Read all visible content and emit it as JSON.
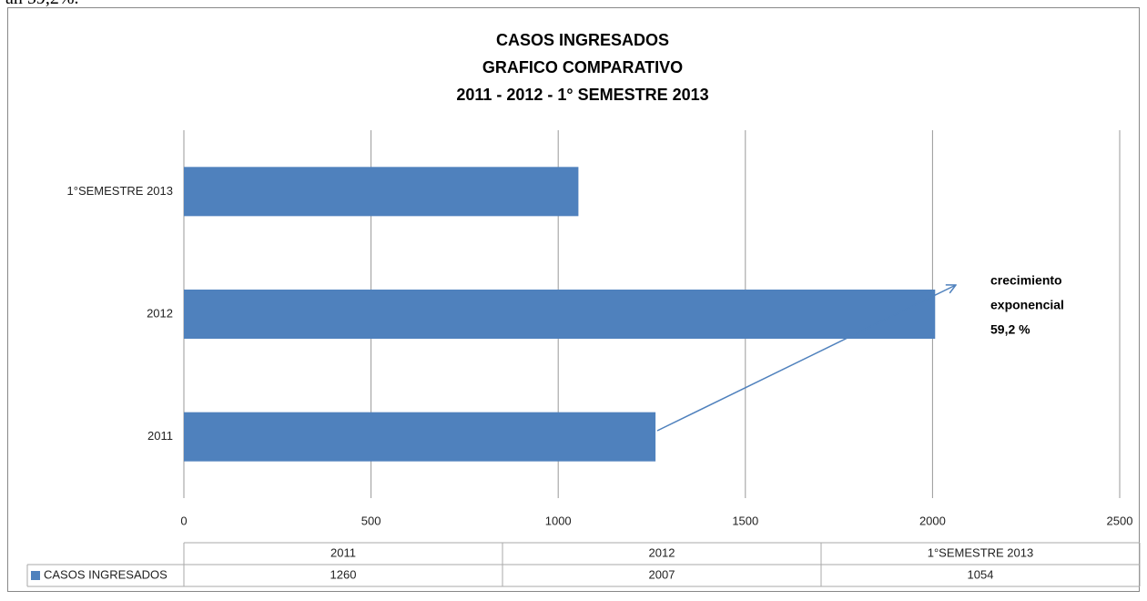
{
  "header_fragment": "an 59,2%.",
  "chart_data": {
    "type": "barh",
    "title": [
      "CASOS INGRESADOS",
      "GRAFICO COMPARATIVO",
      "2011 - 2012 - 1° SEMESTRE 2013"
    ],
    "categories": [
      "2011",
      "2012",
      "1°SEMESTRE 2013"
    ],
    "series": [
      {
        "name": "CASOS INGRESADOS",
        "color": "#4f81bd",
        "values": [
          1260,
          2007,
          1054
        ]
      }
    ],
    "xlim": [
      0,
      2500
    ],
    "xticks": [
      0,
      500,
      1000,
      1500,
      2000,
      2500
    ],
    "grid": true,
    "annotation": [
      "crecimiento",
      "exponencial",
      "59,2 %"
    ],
    "data_table": true
  }
}
